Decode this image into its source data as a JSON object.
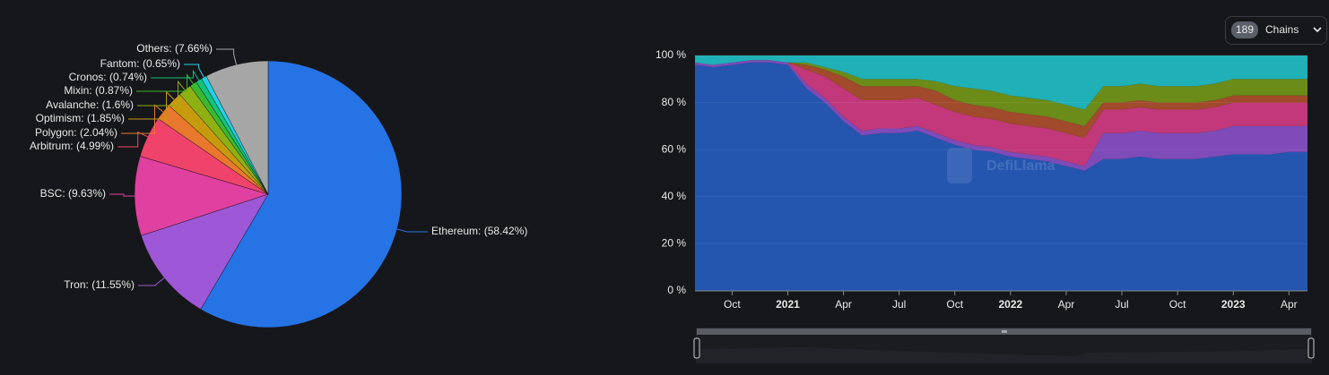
{
  "chart_data": [
    {
      "type": "pie",
      "value_labels": [
        "Ethereum: (58.42%)",
        "Tron: (11.55%)",
        "BSC: (9.63%)",
        "Arbitrum: (4.99%)",
        "Polygon: (2.04%)",
        "Optimism: (1.85%)",
        "Avalanche: (1.6%)",
        "Mixin: (0.87%)",
        "Cronos: (0.74%)",
        "Fantom: (0.65%)",
        "Others: (7.66%)"
      ],
      "values": [
        58.42,
        11.55,
        9.63,
        4.99,
        2.04,
        1.85,
        1.6,
        0.87,
        0.74,
        0.65,
        7.66
      ],
      "colors": [
        "#2673e6",
        "#9e57d6",
        "#e040a0",
        "#f0436b",
        "#e8782c",
        "#c79a0d",
        "#8fb012",
        "#3cb82e",
        "#12c47a",
        "#22d0e6",
        "#a6a6a6"
      ]
    },
    {
      "type": "area",
      "stacked": true,
      "x": [
        "2020-08",
        "2020-09",
        "2020-10",
        "2020-11",
        "2020-12",
        "2021-01",
        "2021-02",
        "2021-03",
        "2021-04",
        "2021-05",
        "2021-06",
        "2021-07",
        "2021-08",
        "2021-09",
        "2021-10",
        "2021-11",
        "2021-12",
        "2022-01",
        "2022-02",
        "2022-03",
        "2022-04",
        "2022-05",
        "2022-06",
        "2022-07",
        "2022-08",
        "2022-09",
        "2022-10",
        "2022-11",
        "2022-12",
        "2023-01",
        "2023-02",
        "2023-03",
        "2023-04",
        "2023-05"
      ],
      "series": [
        {
          "color": "#2456b0",
          "values": [
            96,
            95,
            96,
            97,
            97,
            96,
            86,
            80,
            72,
            66,
            67,
            67,
            68,
            65,
            62,
            60,
            59,
            57,
            56,
            55,
            53,
            51,
            56,
            56,
            57,
            56,
            56,
            56,
            57,
            58,
            58,
            58,
            59,
            59
          ]
        },
        {
          "color": "#7e4bb8",
          "values": [
            1,
            1,
            1,
            1,
            1,
            1,
            2,
            2,
            2,
            2,
            2,
            2,
            2,
            2,
            2,
            2,
            2,
            2,
            2,
            2,
            2,
            2,
            11,
            11,
            11,
            11,
            11,
            11,
            11,
            12,
            12,
            12,
            11,
            11
          ]
        },
        {
          "color": "#c2387a",
          "values": [
            0,
            0,
            0,
            0,
            0,
            0,
            6,
            9,
            12,
            13,
            12,
            12,
            12,
            12,
            12,
            12,
            12,
            12,
            12,
            12,
            12,
            12,
            10,
            10,
            10,
            10,
            10,
            10,
            10,
            10,
            10,
            10,
            10,
            10
          ]
        },
        {
          "color": "#a14a2c",
          "values": [
            0,
            0,
            0,
            0,
            0,
            0,
            2,
            3,
            5,
            6,
            6,
            6,
            5,
            6,
            5,
            5,
            5,
            5,
            5,
            5,
            5,
            5,
            3,
            3,
            3,
            3,
            3,
            3,
            3,
            3,
            3,
            3,
            3,
            3
          ]
        },
        {
          "color": "#6b8c18",
          "values": [
            0,
            0,
            0,
            0,
            0,
            0,
            1,
            1,
            2,
            3,
            3,
            3,
            3,
            4,
            6,
            7,
            7,
            7,
            7,
            7,
            7,
            7,
            7,
            7,
            7,
            7,
            7,
            7,
            7,
            7,
            7,
            7,
            7,
            7
          ]
        },
        {
          "color": "#1fb0b8",
          "values": [
            3,
            4,
            3,
            2,
            2,
            3,
            3,
            5,
            7,
            10,
            10,
            10,
            10,
            11,
            13,
            14,
            15,
            17,
            18,
            19,
            21,
            23,
            13,
            13,
            12,
            13,
            13,
            13,
            12,
            10,
            10,
            10,
            10,
            10
          ]
        }
      ],
      "ylim": [
        0,
        100
      ],
      "yticks": [
        {
          "value": 0,
          "label": "0 %"
        },
        {
          "value": 20,
          "label": "20 %"
        },
        {
          "value": 40,
          "label": "40 %"
        },
        {
          "value": 60,
          "label": "60 %"
        },
        {
          "value": 80,
          "label": "80 %"
        },
        {
          "value": 100,
          "label": "100 %"
        }
      ],
      "xticks": [
        {
          "value": "2020-10",
          "label": "Oct"
        },
        {
          "value": "2021-01",
          "label": "2021"
        },
        {
          "value": "2021-04",
          "label": "Apr"
        },
        {
          "value": "2021-07",
          "label": "Jul"
        },
        {
          "value": "2021-10",
          "label": "Oct"
        },
        {
          "value": "2022-01",
          "label": "2022"
        },
        {
          "value": "2022-04",
          "label": "Apr"
        },
        {
          "value": "2022-07",
          "label": "Jul"
        },
        {
          "value": "2022-10",
          "label": "Oct"
        },
        {
          "value": "2023-01",
          "label": "2023"
        },
        {
          "value": "2023-04",
          "label": "Apr"
        }
      ],
      "grid": true
    }
  ],
  "controls": {
    "chains_count": 189,
    "chains_label": "Chains"
  },
  "watermark": "DefiLlama"
}
